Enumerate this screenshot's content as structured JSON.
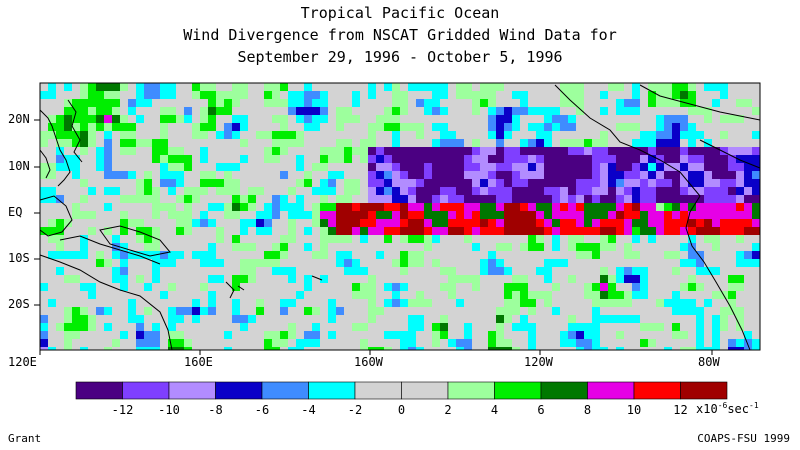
{
  "title": {
    "line1": "Tropical Pacific Ocean",
    "line2": "Wind Divergence from NSCAT Gridded Wind Data for",
    "line3": "September 29, 1996 - October 5, 1996"
  },
  "lat_labels": [
    "20N",
    "10N",
    "EQ",
    "10S",
    "20S"
  ],
  "lon_labels": [
    "120E",
    "160E",
    "160W",
    "120W",
    "80W"
  ],
  "colorbar": {
    "colors": [
      "#4b0082",
      "#7f3fff",
      "#b28cff",
      "#0a00c8",
      "#3f8cff",
      "#00ffff",
      "#d3d3d3",
      "#d3d3d3",
      "#9dff9d",
      "#00ee00",
      "#007800",
      "#e600e6",
      "#ff0000",
      "#a00000"
    ],
    "labels": [
      "-12",
      "-10",
      "-8",
      "-6",
      "-4",
      "-2",
      "0",
      "2",
      "4",
      "6",
      "8",
      "10",
      "12"
    ],
    "units_base": "x10",
    "units_exp": "-6",
    "units_rest": "sec",
    "units_exp2": "-1"
  },
  "footer": {
    "left": "Grant",
    "right": "COAPS-FSU 1999"
  }
}
